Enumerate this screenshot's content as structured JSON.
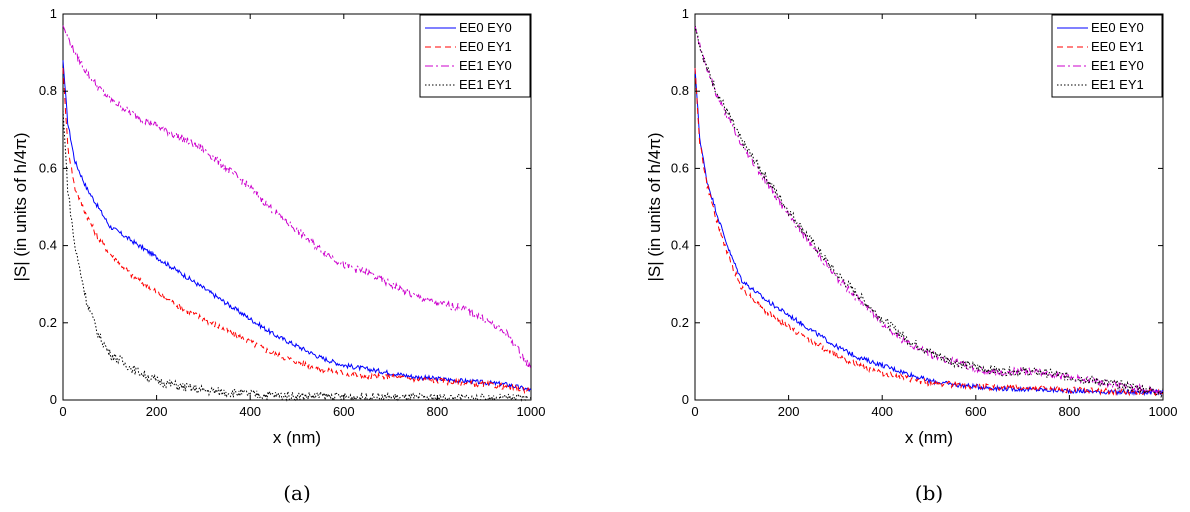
{
  "chart_data": [
    {
      "type": "line",
      "caption": "(a)",
      "xlabel": "x (nm)",
      "ylabel": "|S| (in units of h/4π)",
      "xlim": [
        0,
        1000
      ],
      "ylim": [
        0,
        1
      ],
      "xticks": [
        "0",
        "200",
        "400",
        "600",
        "800",
        "1000"
      ],
      "yticks": [
        "0",
        "0.2",
        "0.4",
        "0.6",
        "0.8",
        "1"
      ],
      "grid": false,
      "legend_position": "top-right",
      "x": [
        0,
        10,
        25,
        50,
        75,
        100,
        150,
        200,
        250,
        300,
        350,
        400,
        450,
        500,
        550,
        600,
        650,
        700,
        750,
        800,
        850,
        900,
        950,
        1000
      ],
      "series": [
        {
          "name": "EE0 EY0",
          "color": "#0000ff",
          "dash": "",
          "values": [
            0.88,
            0.72,
            0.62,
            0.55,
            0.5,
            0.45,
            0.41,
            0.37,
            0.33,
            0.29,
            0.25,
            0.21,
            0.17,
            0.14,
            0.11,
            0.09,
            0.08,
            0.07,
            0.06,
            0.055,
            0.05,
            0.045,
            0.04,
            0.025
          ]
        },
        {
          "name": "EE0 EY1",
          "color": "#ff0000",
          "dash": "6,4",
          "values": [
            0.86,
            0.66,
            0.55,
            0.48,
            0.42,
            0.38,
            0.32,
            0.28,
            0.24,
            0.21,
            0.18,
            0.15,
            0.12,
            0.1,
            0.08,
            0.07,
            0.06,
            0.06,
            0.055,
            0.05,
            0.045,
            0.04,
            0.035,
            0.025
          ]
        },
        {
          "name": "EE1 EY0",
          "color": "#cc00cc",
          "dash": "8,3,2,3",
          "values": [
            0.97,
            0.94,
            0.9,
            0.85,
            0.81,
            0.78,
            0.74,
            0.71,
            0.68,
            0.65,
            0.6,
            0.55,
            0.49,
            0.44,
            0.39,
            0.35,
            0.33,
            0.3,
            0.27,
            0.25,
            0.24,
            0.21,
            0.17,
            0.08
          ]
        },
        {
          "name": "EE1 EY1",
          "color": "#000000",
          "dash": "1.5,2",
          "values": [
            0.75,
            0.55,
            0.4,
            0.26,
            0.17,
            0.12,
            0.08,
            0.05,
            0.035,
            0.025,
            0.02,
            0.015,
            0.012,
            0.01,
            0.01,
            0.008,
            0.007,
            0.006,
            0.005,
            0.005,
            0.005,
            0.004,
            0.004,
            0.004
          ]
        }
      ]
    },
    {
      "type": "line",
      "caption": "(b)",
      "xlabel": "x (nm)",
      "ylabel": "|S| (in units of h/4π)",
      "xlim": [
        0,
        1000
      ],
      "ylim": [
        0,
        1
      ],
      "xticks": [
        "0",
        "200",
        "400",
        "600",
        "800",
        "1000"
      ],
      "yticks": [
        "0",
        "0.2",
        "0.4",
        "0.6",
        "0.8",
        "1"
      ],
      "grid": false,
      "legend_position": "top-right",
      "x": [
        0,
        10,
        25,
        50,
        75,
        100,
        150,
        200,
        250,
        300,
        350,
        400,
        450,
        500,
        550,
        600,
        650,
        700,
        750,
        800,
        850,
        900,
        950,
        1000
      ],
      "series": [
        {
          "name": "EE0 EY0",
          "color": "#0000ff",
          "dash": "",
          "values": [
            0.86,
            0.68,
            0.57,
            0.47,
            0.38,
            0.31,
            0.26,
            0.22,
            0.18,
            0.14,
            0.11,
            0.09,
            0.07,
            0.05,
            0.04,
            0.035,
            0.03,
            0.028,
            0.026,
            0.024,
            0.022,
            0.02,
            0.02,
            0.02
          ]
        },
        {
          "name": "EE0 EY1",
          "color": "#ff0000",
          "dash": "6,4",
          "values": [
            0.86,
            0.67,
            0.56,
            0.45,
            0.36,
            0.29,
            0.23,
            0.19,
            0.15,
            0.12,
            0.09,
            0.07,
            0.055,
            0.045,
            0.04,
            0.035,
            0.032,
            0.03,
            0.028,
            0.026,
            0.024,
            0.022,
            0.02,
            0.02
          ]
        },
        {
          "name": "EE1 EY0",
          "color": "#cc00cc",
          "dash": "8,3,2,3",
          "values": [
            0.97,
            0.92,
            0.86,
            0.78,
            0.72,
            0.66,
            0.57,
            0.48,
            0.4,
            0.32,
            0.26,
            0.2,
            0.15,
            0.12,
            0.1,
            0.08,
            0.07,
            0.075,
            0.07,
            0.06,
            0.05,
            0.04,
            0.03,
            0.02
          ]
        },
        {
          "name": "EE1 EY1",
          "color": "#000000",
          "dash": "1.5,2",
          "values": [
            0.97,
            0.92,
            0.86,
            0.79,
            0.73,
            0.67,
            0.58,
            0.49,
            0.41,
            0.33,
            0.27,
            0.21,
            0.16,
            0.125,
            0.1,
            0.085,
            0.075,
            0.075,
            0.07,
            0.06,
            0.05,
            0.04,
            0.03,
            0.02
          ]
        }
      ]
    }
  ]
}
